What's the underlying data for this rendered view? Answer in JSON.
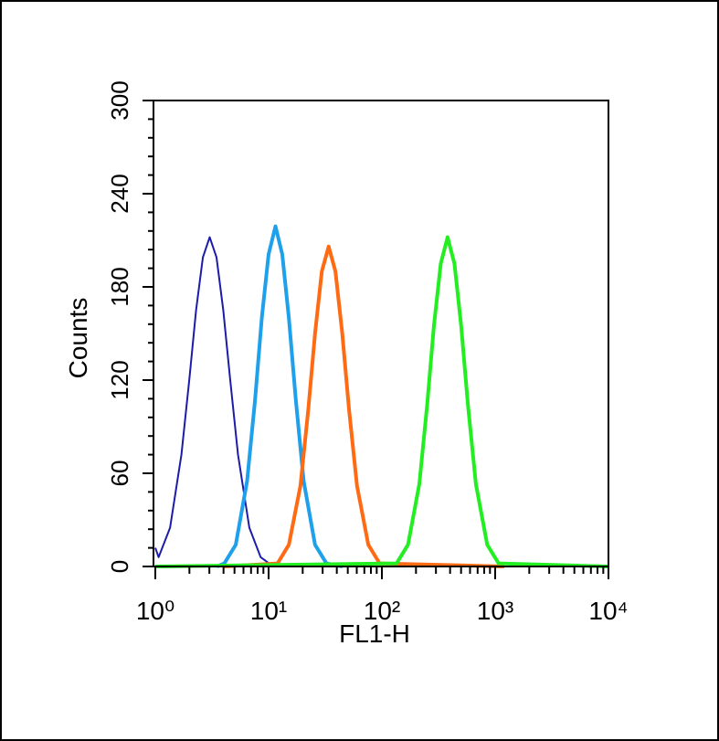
{
  "chart_data": {
    "type": "line",
    "xlabel": "FL1-H",
    "ylabel": "Counts",
    "xscale": "log",
    "xlim": [
      1,
      10000
    ],
    "xticks": [
      {
        "value": 1,
        "label": "10⁰"
      },
      {
        "value": 10,
        "label": "10¹"
      },
      {
        "value": 100,
        "label": "10²"
      },
      {
        "value": 1000,
        "label": "10³"
      },
      {
        "value": 10000,
        "label": "10⁴"
      }
    ],
    "xminorticks": [
      2,
      3,
      4,
      5,
      6,
      7,
      8,
      9,
      20,
      30,
      40,
      50,
      60,
      70,
      80,
      90,
      200,
      300,
      400,
      500,
      600,
      700,
      800,
      900,
      2000,
      3000,
      4000,
      5000,
      6000,
      7000,
      8000,
      9000
    ],
    "ylim": [
      0,
      300
    ],
    "yticks": [
      0,
      60,
      120,
      180,
      240,
      300
    ],
    "yminorticks": [
      12,
      24,
      36,
      48,
      72,
      84,
      96,
      108,
      132,
      144,
      156,
      168,
      192,
      204,
      216,
      228,
      252,
      264,
      276,
      288
    ],
    "series": [
      {
        "color": "#1c1ca8",
        "width": 2,
        "x": [
          1.0,
          1.07,
          1.35,
          1.7,
          2.0,
          2.29,
          2.63,
          3.02,
          3.47,
          3.98,
          4.57,
          5.37,
          6.76,
          8.51,
          11
        ],
        "values": [
          12,
          6,
          25,
          72,
          121,
          165,
          199,
          212,
          199,
          165,
          121,
          72,
          25,
          6,
          0
        ]
      },
      {
        "color": "#1fa0ea",
        "width": 4,
        "x": [
          3.5,
          4.07,
          5.13,
          6.46,
          7.59,
          8.71,
          10.0,
          11.5,
          13.2,
          15.1,
          17.4,
          20.4,
          25.7,
          32.4,
          45
        ],
        "values": [
          0,
          2,
          14,
          55,
          107,
          160,
          201,
          219,
          201,
          160,
          107,
          55,
          14,
          2,
          0
        ]
      },
      {
        "color": "#ff6a13",
        "width": 4,
        "x": [
          4,
          12.0,
          15.1,
          19.1,
          22.4,
          25.7,
          29.5,
          33.9,
          38.9,
          44.7,
          51.3,
          60.3,
          75.9,
          95.5,
          1200
        ],
        "values": [
          0,
          2,
          14,
          52,
          101,
          150,
          190,
          206,
          190,
          150,
          101,
          52,
          14,
          2,
          0
        ]
      },
      {
        "color": "#22ee22",
        "width": 4,
        "x": [
          1,
          135,
          170,
          214,
          251,
          288,
          331,
          380,
          437,
          501,
          575,
          676,
          851,
          1072,
          10000
        ],
        "values": [
          0,
          2,
          14,
          53,
          104,
          155,
          195,
          212,
          195,
          155,
          104,
          53,
          14,
          2,
          0
        ]
      }
    ]
  }
}
